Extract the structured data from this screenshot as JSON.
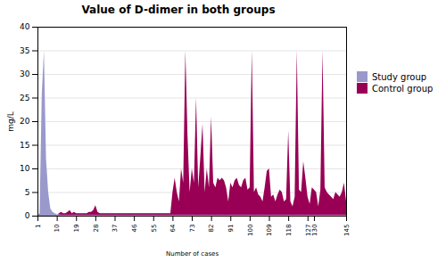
{
  "chart_data": {
    "type": "area",
    "title": "Value of D-dimer in both groups",
    "xlabel": "Number of cases",
    "ylabel": "mg/L",
    "xlim": [
      1,
      145
    ],
    "ylim": [
      0,
      40
    ],
    "xticks": [
      1,
      10,
      19,
      28,
      37,
      46,
      55,
      64,
      73,
      82,
      91,
      100,
      109,
      118,
      127,
      130,
      145
    ],
    "yticks": [
      0,
      5,
      10,
      15,
      20,
      25,
      30,
      35,
      40
    ],
    "grid": true,
    "legend": "right",
    "x": [
      1,
      2,
      3,
      4,
      5,
      6,
      7,
      8,
      9,
      10,
      11,
      12,
      13,
      14,
      15,
      16,
      17,
      18,
      19,
      20,
      21,
      22,
      23,
      24,
      25,
      26,
      27,
      28,
      29,
      30,
      31,
      32,
      33,
      34,
      35,
      36,
      37,
      38,
      39,
      40,
      41,
      42,
      43,
      44,
      45,
      46,
      47,
      48,
      49,
      50,
      51,
      52,
      53,
      54,
      55,
      56,
      57,
      58,
      59,
      60,
      61,
      62,
      63,
      64,
      65,
      66,
      67,
      68,
      69,
      70,
      71,
      72,
      73,
      74,
      75,
      76,
      77,
      78,
      79,
      80,
      81,
      82,
      83,
      84,
      85,
      86,
      87,
      88,
      89,
      90,
      91,
      92,
      93,
      94,
      95,
      96,
      97,
      98,
      99,
      100,
      101,
      102,
      103,
      104,
      105,
      106,
      107,
      108,
      109,
      110,
      111,
      112,
      113,
      114,
      115,
      116,
      117,
      118,
      119,
      120,
      121,
      122,
      123,
      124,
      125,
      126,
      127,
      128,
      129,
      130,
      131,
      132,
      133,
      134,
      135,
      136,
      137,
      138,
      139,
      140,
      141,
      142,
      143,
      144,
      145
    ],
    "series": [
      {
        "name": "Study group",
        "color": "#9999cc",
        "values": [
          0.2,
          0.5,
          25.5,
          35,
          12,
          5,
          1.5,
          0.8,
          0.5,
          0.3,
          0.3,
          0.2,
          0.2,
          0.2,
          0.2,
          0.2,
          0.2,
          0.2,
          0.2,
          0.2,
          0.2,
          0.2,
          0.2,
          0.2,
          0.2,
          0.2,
          0.2,
          0.2,
          0.2,
          0.2,
          0.2,
          0.2,
          0.2,
          0.2,
          0.2,
          0.2,
          0.2,
          0.2,
          0.2,
          0.2,
          0.2,
          0.2,
          0.2,
          0.2,
          0.2,
          0.2,
          0.2,
          0.2,
          0.2,
          0.2,
          0.2,
          0.2,
          0.2,
          0.2,
          0.2,
          0.2,
          0.2,
          0.2,
          0.2,
          0.2,
          0.2,
          0.2,
          0.2,
          0.2,
          0.2,
          0.2,
          0.2,
          0.2,
          0.2,
          0.2,
          0.2,
          0.2,
          0.2,
          0.2,
          0.2,
          0.2,
          0.2,
          0.2,
          0.2,
          0.2,
          0.2,
          0.2,
          0.2,
          0.2,
          0.2,
          0.2,
          0.2,
          0.2,
          0.2,
          0.2,
          0.2,
          0.2,
          0.2,
          0.2,
          0.2,
          0.2,
          0.2,
          0.2,
          0.2,
          0.2,
          0.2,
          0.2,
          0.2,
          0.2,
          0.2,
          0.2,
          0.2,
          0.2,
          0.2,
          0.2,
          0.2,
          0.2,
          0.2,
          0.2,
          0.2,
          0.2,
          0.2,
          0.2,
          0.2,
          0.2,
          0.2,
          0.2,
          0.2,
          0.2,
          0.2,
          0.2,
          0.2,
          0.2,
          0.2,
          0.2,
          0.2,
          0.2,
          0.2,
          0.2,
          0.2,
          0.2,
          0.2,
          0.2,
          0.2,
          0.2,
          0.2,
          0.2,
          0.2,
          0.2,
          0.2
        ]
      },
      {
        "name": "Control group",
        "color": "#990055",
        "values": [
          0,
          0,
          0,
          0,
          0,
          0,
          0,
          0,
          0,
          0,
          0.5,
          0.8,
          0.5,
          0.5,
          0.8,
          1.2,
          0.5,
          0.8,
          0.5,
          0.5,
          0.5,
          0.5,
          0.5,
          0.5,
          0.8,
          0.8,
          1.2,
          2.2,
          0.8,
          0.5,
          0.5,
          0.5,
          0.5,
          0.5,
          0.5,
          0.5,
          0.5,
          0.5,
          0.5,
          0.5,
          0.5,
          0.5,
          0.5,
          0.5,
          0.5,
          0.5,
          0.5,
          0.5,
          0.5,
          0.5,
          0.5,
          0.5,
          0.5,
          0.5,
          0.5,
          0.5,
          0.5,
          0.5,
          0.5,
          0.5,
          0.5,
          0.5,
          0.5,
          5.0,
          8.0,
          5.0,
          3.0,
          10.0,
          7.0,
          35.0,
          17.0,
          5.0,
          10.0,
          7.0,
          25.0,
          6.0,
          12.5,
          19.5,
          5.0,
          10.0,
          6.0,
          21.0,
          7.0,
          6.0,
          8.0,
          7.5,
          8.0,
          7.5,
          6.0,
          3.0,
          7.0,
          6.0,
          7.5,
          8.0,
          6.5,
          6.0,
          7.5,
          8.0,
          5.5,
          6.0,
          35.0,
          5.0,
          6.0,
          4.5,
          4.0,
          3.0,
          6.0,
          9.5,
          10.0,
          4.0,
          4.5,
          3.0,
          4.5,
          5.5,
          5.0,
          3.0,
          3.5,
          18.0,
          3.0,
          2.0,
          4.0,
          35.0,
          5.5,
          5.0,
          11.5,
          8.0,
          4.0,
          2.5,
          6.0,
          5.5,
          5.0,
          2.0,
          5.5,
          35.0,
          6.0,
          5.0,
          4.5,
          4.0,
          3.5,
          5.0,
          4.5,
          4.0,
          5.0,
          7.0,
          3.0
        ]
      }
    ]
  }
}
